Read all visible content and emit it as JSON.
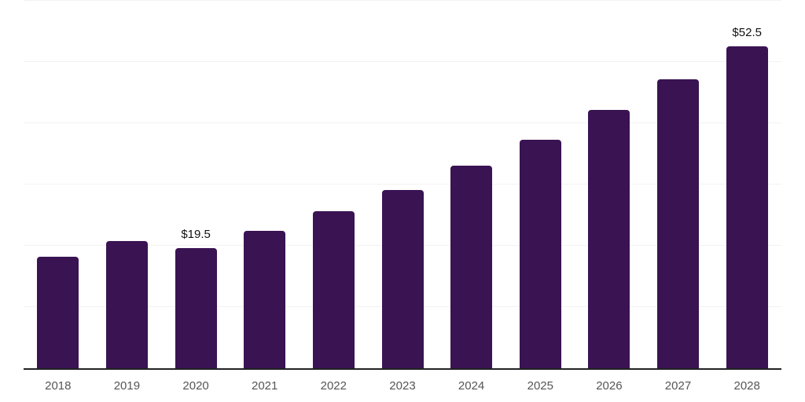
{
  "chart_data": {
    "type": "bar",
    "title": "",
    "xlabel": "",
    "ylabel": "",
    "categories": [
      "2018",
      "2019",
      "2020",
      "2021",
      "2022",
      "2023",
      "2024",
      "2025",
      "2026",
      "2027",
      "2028"
    ],
    "values": [
      18.1,
      20.6,
      19.5,
      22.3,
      25.5,
      29.0,
      33.0,
      37.2,
      42.0,
      47.0,
      52.5
    ],
    "data_labels": [
      {
        "category": "2020",
        "text": "$19.5"
      },
      {
        "category": "2028",
        "text": "$52.5"
      }
    ],
    "ylim": [
      0,
      60
    ],
    "gridline_step": 10,
    "grid": true,
    "legend": false,
    "y_tick_labels_visible": false
  },
  "style": {
    "background": "#ffffff",
    "bar_color": "#3A1353",
    "grid_color": "#f2f2f2",
    "axis_line_color": "#222222",
    "x_tick_color": "#555555",
    "data_label_color": "#111111"
  }
}
